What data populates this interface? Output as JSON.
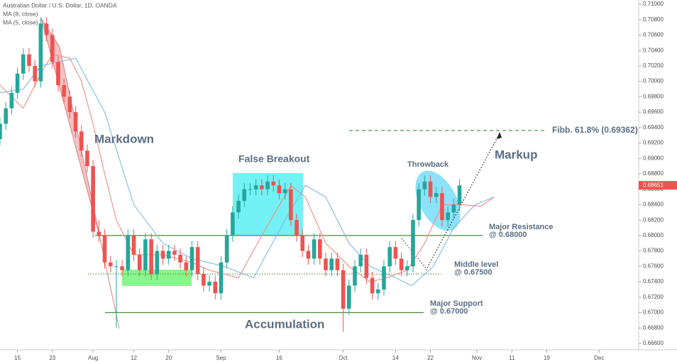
{
  "chart_data": {
    "type": "candlestick",
    "title": "Australian Dollar / U.S. Dollar, 1D, OANDA",
    "x": [
      -16,
      -15,
      -14,
      -13,
      -12,
      -11,
      -10,
      -9,
      -8,
      -7,
      -6,
      -5,
      -4,
      -3,
      -2,
      -1,
      0,
      1,
      2,
      3,
      4,
      5,
      6,
      7,
      8,
      9,
      10,
      11,
      12,
      13,
      14,
      15,
      16,
      17,
      18,
      19,
      20,
      21,
      22,
      23,
      24,
      25,
      26,
      27,
      28,
      29,
      30,
      31,
      32,
      33,
      34,
      35,
      36,
      37,
      38,
      39,
      40,
      41,
      42,
      43,
      44,
      45,
      46,
      47,
      48,
      49,
      50,
      51,
      52,
      53,
      54,
      55,
      56,
      57,
      58,
      59,
      60,
      61,
      62,
      63
    ],
    "xlim": [
      -16,
      93.8
    ],
    "xticks": [
      {
        "value": -13,
        "label": "15"
      },
      {
        "value": -7,
        "label": "23"
      },
      {
        "value": 0,
        "label": "Aug"
      },
      {
        "value": 7,
        "label": "12"
      },
      {
        "value": 13,
        "label": "20"
      },
      {
        "value": 22,
        "label": "Sep"
      },
      {
        "value": 32,
        "label": "16"
      },
      {
        "value": 43,
        "label": "Oct"
      },
      {
        "value": 52,
        "label": "14"
      },
      {
        "value": 58,
        "label": "22"
      },
      {
        "value": 66,
        "label": "Nov"
      },
      {
        "value": 72,
        "label": "11"
      },
      {
        "value": 78,
        "label": "19"
      },
      {
        "value": 87,
        "label": "Dec"
      }
    ],
    "open": [
      0.6925,
      0.6945,
      0.6965,
      0.6985,
      0.701,
      0.7035,
      0.702,
      0.7,
      0.7075,
      0.706,
      0.7025,
      0.6995,
      0.698,
      0.696,
      0.6935,
      0.691,
      0.689,
      0.6805,
      0.68,
      0.6765,
      0.676,
      0.676,
      0.6755,
      0.68,
      0.6775,
      0.6755,
      0.6795,
      0.675,
      0.678,
      0.677,
      0.678,
      0.6775,
      0.6765,
      0.6755,
      0.6785,
      0.675,
      0.6735,
      0.674,
      0.6725,
      0.6765,
      0.68,
      0.683,
      0.6845,
      0.686,
      0.686,
      0.6865,
      0.686,
      0.687,
      0.6865,
      0.6855,
      0.686,
      0.682,
      0.68,
      0.678,
      0.677,
      0.6795,
      0.677,
      0.6755,
      0.677,
      0.6755,
      0.6705,
      0.6735,
      0.676,
      0.6775,
      0.6745,
      0.6725,
      0.673,
      0.676,
      0.6785,
      0.677,
      0.6755,
      0.676,
      0.682,
      0.686,
      0.687,
      0.685,
      0.6855,
      0.682,
      0.683,
      0.684
    ],
    "high": [
      0.6953,
      0.6973,
      0.6993,
      0.7018,
      0.7043,
      0.7043,
      0.7028,
      0.7083,
      0.7083,
      0.7068,
      0.7033,
      0.7003,
      0.6988,
      0.6968,
      0.6943,
      0.6918,
      0.6898,
      0.682,
      0.6808,
      0.6773,
      0.6768,
      0.6768,
      0.6808,
      0.6808,
      0.6783,
      0.6803,
      0.6803,
      0.6788,
      0.6788,
      0.6788,
      0.6788,
      0.6783,
      0.6773,
      0.6793,
      0.6793,
      0.6758,
      0.6748,
      0.6748,
      0.6773,
      0.6808,
      0.6838,
      0.6853,
      0.6868,
      0.6868,
      0.6873,
      0.6873,
      0.6878,
      0.6878,
      0.6873,
      0.6868,
      0.6868,
      0.6828,
      0.6808,
      0.6788,
      0.6803,
      0.6803,
      0.6778,
      0.6778,
      0.6778,
      0.6763,
      0.6743,
      0.6768,
      0.6783,
      0.6783,
      0.6753,
      0.6738,
      0.6768,
      0.6793,
      0.6793,
      0.6778,
      0.6768,
      0.6828,
      0.6868,
      0.6878,
      0.6878,
      0.6863,
      0.6863,
      0.6838,
      0.6848,
      0.6873
    ],
    "low": [
      0.6917,
      0.6937,
      0.6957,
      0.6977,
      0.7002,
      0.7012,
      0.6992,
      0.6992,
      0.7052,
      0.7017,
      0.6987,
      0.6972,
      0.6952,
      0.6927,
      0.6902,
      0.6882,
      0.6797,
      0.6792,
      0.6757,
      0.6752,
      0.668,
      0.6747,
      0.6747,
      0.6767,
      0.6747,
      0.6747,
      0.6742,
      0.6742,
      0.6762,
      0.6762,
      0.6767,
      0.6757,
      0.6747,
      0.6747,
      0.6742,
      0.6727,
      0.6727,
      0.6717,
      0.6717,
      0.6757,
      0.6792,
      0.6822,
      0.6837,
      0.6852,
      0.6852,
      0.6852,
      0.6852,
      0.6857,
      0.6847,
      0.6847,
      0.6812,
      0.6792,
      0.6772,
      0.6762,
      0.6762,
      0.6762,
      0.6747,
      0.6747,
      0.6747,
      0.6675,
      0.6697,
      0.6727,
      0.6752,
      0.6737,
      0.6717,
      0.6717,
      0.6722,
      0.6752,
      0.6762,
      0.6747,
      0.6747,
      0.6752,
      0.6812,
      0.6852,
      0.6842,
      0.6842,
      0.6812,
      0.6812,
      0.6822,
      0.6832
    ],
    "close": [
      0.6945,
      0.6965,
      0.6985,
      0.701,
      0.7035,
      0.702,
      0.7,
      0.7075,
      0.706,
      0.7025,
      0.6995,
      0.698,
      0.696,
      0.6935,
      0.691,
      0.689,
      0.6805,
      0.68,
      0.6765,
      0.676,
      0.676,
      0.6755,
      0.68,
      0.6775,
      0.6755,
      0.6795,
      0.675,
      0.678,
      0.677,
      0.678,
      0.6775,
      0.6765,
      0.6755,
      0.6785,
      0.675,
      0.6735,
      0.674,
      0.6725,
      0.6765,
      0.68,
      0.683,
      0.6845,
      0.686,
      0.686,
      0.6865,
      0.686,
      0.687,
      0.6865,
      0.6855,
      0.686,
      0.682,
      0.68,
      0.678,
      0.677,
      0.6795,
      0.677,
      0.6755,
      0.677,
      0.6755,
      0.6705,
      0.6735,
      0.676,
      0.6775,
      0.6745,
      0.6725,
      0.673,
      0.676,
      0.6785,
      0.677,
      0.6755,
      0.676,
      0.682,
      0.686,
      0.687,
      0.685,
      0.6855,
      0.682,
      0.683,
      0.684,
      0.6865
    ],
    "up_color": "#26a69a",
    "down_color": "#ef5350",
    "ylim": [
      0.66517,
      0.71055
    ],
    "yticks": [
      {
        "value": 0.71,
        "label": "0.71000"
      },
      {
        "value": 0.708,
        "label": "0.70800"
      },
      {
        "value": 0.706,
        "label": "0.70600"
      },
      {
        "value": 0.704,
        "label": "0.70400"
      },
      {
        "value": 0.702,
        "label": "0.70200"
      },
      {
        "value": 0.7,
        "label": "0.70000"
      },
      {
        "value": 0.698,
        "label": "0.69800"
      },
      {
        "value": 0.696,
        "label": "0.69600"
      },
      {
        "value": 0.694,
        "label": "0.69400"
      },
      {
        "value": 0.692,
        "label": "0.69200"
      },
      {
        "value": 0.69,
        "label": "0.69000"
      },
      {
        "value": 0.688,
        "label": "0.68800"
      },
      {
        "value": 0.686,
        "label": "0.68600"
      },
      {
        "value": 0.684,
        "label": "0.68400"
      },
      {
        "value": 0.682,
        "label": "0.68200"
      },
      {
        "value": 0.68,
        "label": "0.68000"
      },
      {
        "value": 0.678,
        "label": "0.67800"
      },
      {
        "value": 0.676,
        "label": "0.67600"
      },
      {
        "value": 0.674,
        "label": "0.67400"
      },
      {
        "value": 0.672,
        "label": "0.67200"
      },
      {
        "value": 0.67,
        "label": "0.67000"
      },
      {
        "value": 0.668,
        "label": "0.66800"
      },
      {
        "value": 0.666,
        "label": "0.66600"
      }
    ],
    "last_price": 0.68651,
    "last_price_color": "#ef5350",
    "lines": [
      {
        "name": "MA (8, close)",
        "color": "#f28b82",
        "x": [
          -16,
          -12,
          -9,
          -7,
          -4,
          -2,
          0,
          2,
          4,
          7,
          12,
          17,
          20,
          25,
          29,
          34,
          36.5,
          40,
          44,
          47.6,
          50.5,
          54,
          57,
          60,
          63,
          66.7,
          69
        ],
        "values": [
          0.6995,
          0.6965,
          0.701,
          0.7035,
          0.703,
          0.7,
          0.6945,
          0.688,
          0.682,
          0.6775,
          0.6775,
          0.6765,
          0.6755,
          0.6745,
          0.68,
          0.6865,
          0.685,
          0.679,
          0.676,
          0.674,
          0.6745,
          0.6755,
          0.679,
          0.684,
          0.684,
          0.6838,
          0.685
        ]
      },
      {
        "name": "MA (5, close)",
        "color": "#7fb9e6",
        "x": [
          -16,
          -12,
          -9,
          -3,
          2,
          7,
          12,
          17,
          22.5,
          27.6,
          33,
          36.5,
          40,
          44,
          47.6,
          52,
          54.8,
          58.5,
          62,
          65.7,
          69
        ],
        "values": [
          0.6985,
          0.699,
          0.702,
          0.703,
          0.696,
          0.684,
          0.679,
          0.677,
          0.676,
          0.6745,
          0.682,
          0.6865,
          0.685,
          0.679,
          0.676,
          0.6745,
          0.6735,
          0.676,
          0.681,
          0.684,
          0.685
        ]
      }
    ],
    "levels": [
      {
        "value": 0.68,
        "color": "#4a8c3a",
        "style": "solid"
      },
      {
        "value": 0.675,
        "color": "#4a8c3a",
        "style": "dotted"
      },
      {
        "value": 0.67,
        "color": "#4a8c3a",
        "style": "solid"
      },
      {
        "value": 0.69362,
        "color": "#3b8c3b",
        "style": "dashed"
      }
    ],
    "annotations": {
      "markdown": "Markdown",
      "false_breakout": "False Breakout",
      "accumulation": "Accumulation",
      "throwback": "Throwback",
      "markup": "Markup",
      "resistance": [
        "Major Resistance",
        "@ 0.68000"
      ],
      "middle": [
        "Middle level",
        "@ 0.67500"
      ],
      "support": [
        "Major Support",
        "@ 0.67000"
      ],
      "fib": "Fibb. 61.8% (0.69362)"
    }
  }
}
